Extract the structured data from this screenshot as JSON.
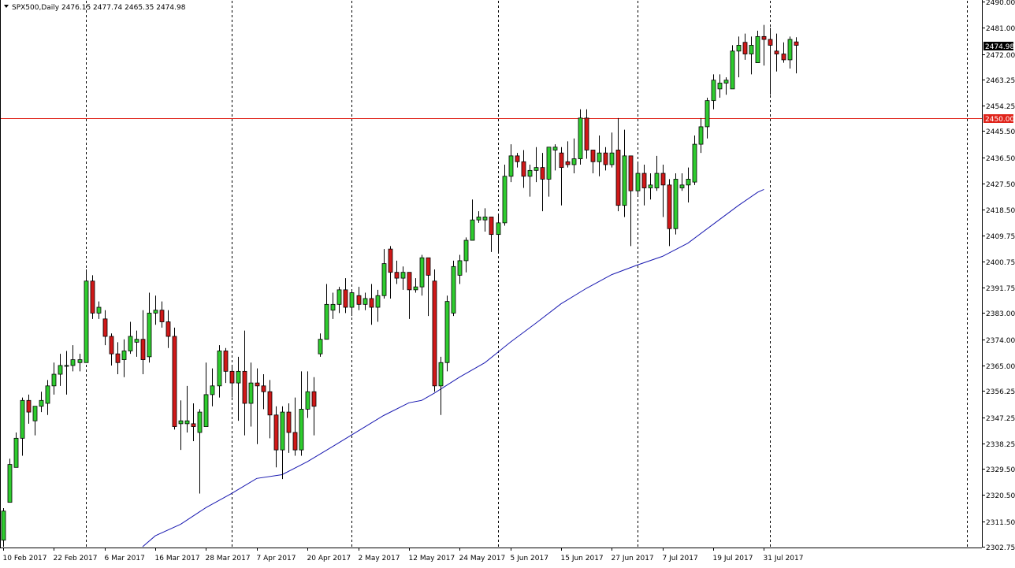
{
  "chart_data": {
    "type": "candlestick",
    "symbol": "SPX500",
    "timeframe": "Daily",
    "header": {
      "text": "SPX500,Daily  2476.15 2477.74 2465.35 2474.98",
      "open": 2476.15,
      "high": 2477.74,
      "low": 2465.35,
      "close": 2474.98
    },
    "ylim": [
      2302.75,
      2490.0
    ],
    "y_ticks": [
      "2490.00",
      "2481.00",
      "2472.00",
      "2463.25",
      "2454.25",
      "2445.50",
      "2436.50",
      "2427.50",
      "2418.50",
      "2409.75",
      "2400.75",
      "2391.75",
      "2383.00",
      "2374.00",
      "2365.00",
      "2356.25",
      "2347.25",
      "2338.25",
      "2329.50",
      "2320.50",
      "2311.50",
      "2302.75"
    ],
    "x_labels": [
      {
        "label": "10 Feb 2017",
        "bar": 0
      },
      {
        "label": "22 Feb 2017",
        "bar": 8
      },
      {
        "label": "6 Mar 2017",
        "bar": 16
      },
      {
        "label": "16 Mar 2017",
        "bar": 24
      },
      {
        "label": "28 Mar 2017",
        "bar": 32
      },
      {
        "label": "7 Apr 2017",
        "bar": 40
      },
      {
        "label": "20 Apr 2017",
        "bar": 48
      },
      {
        "label": "2 May 2017",
        "bar": 56
      },
      {
        "label": "12 May 2017",
        "bar": 64
      },
      {
        "label": "24 May 2017",
        "bar": 72
      },
      {
        "label": "5 Jun 2017",
        "bar": 80
      },
      {
        "label": "15 Jun 2017",
        "bar": 88
      },
      {
        "label": "27 Jun 2017",
        "bar": 96
      },
      {
        "label": "7 Jul 2017",
        "bar": 104
      },
      {
        "label": "19 Jul 2017",
        "bar": 112
      },
      {
        "label": "31 Jul 2017",
        "bar": 120
      }
    ],
    "separator_bars": [
      13,
      36,
      55,
      78,
      100,
      121,
      152
    ],
    "horizontal_line": {
      "value": 2450.0,
      "label": "2450.00",
      "color": "#e0241b"
    },
    "current_price": {
      "value": 2474.98,
      "label": "2474.98"
    },
    "ma_line": {
      "color": "#1818b0",
      "points": [
        [
          22,
          2302.75
        ],
        [
          24,
          2306.5
        ],
        [
          28,
          2310.5
        ],
        [
          32,
          2316.2
        ],
        [
          36,
          2321.0
        ],
        [
          40,
          2326.2
        ],
        [
          44,
          2327.5
        ],
        [
          48,
          2332.0
        ],
        [
          52,
          2337.2
        ],
        [
          56,
          2342.5
        ],
        [
          60,
          2347.8
        ],
        [
          64,
          2352.2
        ],
        [
          66,
          2353.0
        ],
        [
          68,
          2355.5
        ],
        [
          72,
          2361.0
        ],
        [
          76,
          2366.0
        ],
        [
          80,
          2373.0
        ],
        [
          84,
          2379.5
        ],
        [
          88,
          2386.2
        ],
        [
          92,
          2391.5
        ],
        [
          96,
          2396.2
        ],
        [
          100,
          2399.5
        ],
        [
          104,
          2402.5
        ],
        [
          108,
          2407.0
        ],
        [
          112,
          2413.5
        ],
        [
          116,
          2420.0
        ],
        [
          119,
          2424.5
        ],
        [
          120,
          2425.5
        ]
      ]
    },
    "colors": {
      "up": "#2ecc2e",
      "down": "#d01818",
      "wick": "#000000",
      "grid": "#000000",
      "axis": "#000000"
    },
    "ohlc": [
      [
        2305,
        2315,
        2302.75,
        2316
      ],
      [
        2318,
        2331,
        2318,
        2333
      ],
      [
        2330,
        2340,
        2330,
        2342
      ],
      [
        2340,
        2353,
        2334,
        2354
      ],
      [
        2353,
        2349,
        2345,
        2355
      ],
      [
        2346,
        2351,
        2341,
        2351
      ],
      [
        2351,
        2353,
        2349,
        2356
      ],
      [
        2352,
        2358,
        2348,
        2360
      ],
      [
        2358,
        2362,
        2355,
        2366
      ],
      [
        2362,
        2365,
        2358,
        2369
      ],
      [
        2365,
        2365,
        2355,
        2370
      ],
      [
        2365,
        2367,
        2363,
        2372
      ],
      [
        2366,
        2367,
        2363,
        2369
      ],
      [
        2366,
        2394,
        2366,
        2398
      ],
      [
        2394,
        2383,
        2381,
        2396
      ],
      [
        2383,
        2385,
        2381,
        2387
      ],
      [
        2381,
        2375,
        2372,
        2384
      ],
      [
        2375,
        2369,
        2365,
        2376
      ],
      [
        2369,
        2366,
        2362,
        2373
      ],
      [
        2367,
        2370,
        2361,
        2374
      ],
      [
        2370,
        2375,
        2369,
        2380
      ],
      [
        2373,
        2374,
        2368,
        2377
      ],
      [
        2374,
        2367,
        2362,
        2384
      ],
      [
        2368,
        2383,
        2366,
        2390
      ],
      [
        2383,
        2384,
        2379,
        2389
      ],
      [
        2384,
        2380,
        2378,
        2387
      ],
      [
        2380,
        2375,
        2371,
        2384
      ],
      [
        2375,
        2344,
        2343,
        2378
      ],
      [
        2345,
        2346,
        2336,
        2353
      ],
      [
        2345,
        2346,
        2342,
        2358
      ],
      [
        2345,
        2344,
        2339,
        2352
      ],
      [
        2342,
        2349,
        2321,
        2350
      ],
      [
        2344,
        2355,
        2344,
        2366
      ],
      [
        2355,
        2358,
        2351,
        2364
      ],
      [
        2358,
        2370,
        2354,
        2372
      ],
      [
        2370,
        2363,
        2359,
        2371
      ],
      [
        2363,
        2359,
        2354,
        2365
      ],
      [
        2359,
        2363,
        2346,
        2368
      ],
      [
        2363,
        2352,
        2341,
        2377
      ],
      [
        2352,
        2359,
        2344,
        2366
      ],
      [
        2359,
        2358,
        2338,
        2364
      ],
      [
        2358,
        2356,
        2350,
        2362
      ],
      [
        2356,
        2348,
        2340,
        2360
      ],
      [
        2348,
        2336,
        2330,
        2351
      ],
      [
        2336,
        2349,
        2326,
        2351
      ],
      [
        2349,
        2342,
        2335,
        2352
      ],
      [
        2342,
        2336,
        2334,
        2354
      ],
      [
        2336,
        2350,
        2334,
        2363
      ],
      [
        2350,
        2356,
        2347,
        2363
      ],
      [
        2356,
        2351,
        2341,
        2361
      ],
      [
        2369,
        2374,
        2368,
        2376
      ],
      [
        2374,
        2386,
        2374,
        2393
      ],
      [
        2384,
        2386,
        2381,
        2390
      ],
      [
        2386,
        2391,
        2383,
        2392
      ],
      [
        2391,
        2385,
        2383,
        2395
      ],
      [
        2385,
        2390,
        2382,
        2391
      ],
      [
        2389,
        2386,
        2384,
        2392
      ],
      [
        2386,
        2388,
        2384,
        2390
      ],
      [
        2388,
        2385,
        2379,
        2393
      ],
      [
        2385,
        2389,
        2380,
        2391
      ],
      [
        2389,
        2400,
        2388,
        2405
      ],
      [
        2405,
        2397,
        2388,
        2406
      ],
      [
        2397,
        2395,
        2393,
        2401
      ],
      [
        2395,
        2397,
        2391,
        2399
      ],
      [
        2397,
        2391,
        2381,
        2397
      ],
      [
        2391,
        2392,
        2390,
        2395
      ],
      [
        2392,
        2402,
        2389,
        2403
      ],
      [
        2402,
        2396,
        2382,
        2402
      ],
      [
        2394,
        2358,
        2356,
        2398
      ],
      [
        2358,
        2366,
        2348,
        2368
      ],
      [
        2366,
        2387,
        2363,
        2389
      ],
      [
        2383,
        2399,
        2382,
        2401
      ],
      [
        2396,
        2401,
        2393,
        2403
      ],
      [
        2401,
        2408,
        2397,
        2409
      ],
      [
        2408,
        2415,
        2408,
        2422
      ],
      [
        2415,
        2416,
        2414,
        2418
      ],
      [
        2415,
        2416,
        2411,
        2419
      ],
      [
        2416,
        2410,
        2404,
        2416
      ],
      [
        2410,
        2414,
        2404,
        2417
      ],
      [
        2414,
        2430,
        2413,
        2434
      ],
      [
        2430,
        2437,
        2428,
        2441
      ],
      [
        2437,
        2435,
        2433,
        2438
      ],
      [
        2435,
        2430,
        2426,
        2439
      ],
      [
        2430,
        2432,
        2423,
        2434
      ],
      [
        2432,
        2433,
        2428,
        2440
      ],
      [
        2433,
        2429,
        2418,
        2438
      ],
      [
        2429,
        2440,
        2423,
        2440
      ],
      [
        2439,
        2440,
        2432,
        2441
      ],
      [
        2438,
        2433,
        2420,
        2440
      ],
      [
        2435,
        2434,
        2433,
        2442
      ],
      [
        2434,
        2436,
        2431,
        2443
      ],
      [
        2436,
        2450,
        2434,
        2453
      ],
      [
        2450,
        2439,
        2436,
        2453
      ],
      [
        2439,
        2435,
        2431,
        2439
      ],
      [
        2435,
        2438,
        2430,
        2444
      ],
      [
        2438,
        2434,
        2432,
        2440
      ],
      [
        2434,
        2438,
        2433,
        2445
      ],
      [
        2439,
        2420,
        2418,
        2450
      ],
      [
        2420,
        2437,
        2416,
        2446
      ],
      [
        2437,
        2425,
        2406,
        2437
      ],
      [
        2425,
        2431,
        2423,
        2435
      ],
      [
        2431,
        2426,
        2420,
        2434
      ],
      [
        2426,
        2427,
        2422,
        2431
      ],
      [
        2426,
        2431,
        2425,
        2437
      ],
      [
        2431,
        2427,
        2416,
        2434
      ],
      [
        2427,
        2412,
        2406,
        2429
      ],
      [
        2412,
        2429,
        2410,
        2431
      ],
      [
        2426,
        2427,
        2425,
        2431
      ],
      [
        2427,
        2429,
        2421,
        2433
      ],
      [
        2428,
        2441,
        2427,
        2444
      ],
      [
        2441,
        2447,
        2438,
        2450
      ],
      [
        2447,
        2456,
        2443,
        2457
      ],
      [
        2456,
        2463,
        2453,
        2465
      ],
      [
        2460,
        2462,
        2457,
        2465
      ],
      [
        2462,
        2463,
        2458,
        2464
      ],
      [
        2460,
        2473,
        2460,
        2475
      ],
      [
        2473,
        2475,
        2464,
        2478
      ],
      [
        2476,
        2472,
        2470,
        2479
      ],
      [
        2472,
        2475,
        2465,
        2478
      ],
      [
        2469,
        2478,
        2469,
        2480
      ],
      [
        2478,
        2477,
        2468,
        2482
      ],
      [
        2477,
        2475,
        2458,
        2481
      ],
      [
        2473,
        2472,
        2466,
        2479
      ],
      [
        2472,
        2470,
        2469,
        2476
      ],
      [
        2470,
        2477,
        2467,
        2478
      ],
      [
        2476.15,
        2474.98,
        2465.35,
        2477.74
      ]
    ]
  }
}
